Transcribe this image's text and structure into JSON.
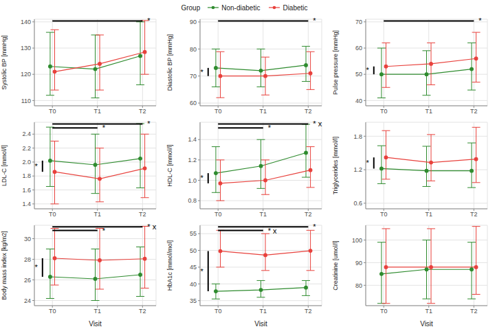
{
  "legend_title": "Group",
  "legend": "top",
  "chart_data": [
    {
      "type": "line",
      "y_label": "Systolic BP [mmHg]",
      "categories": [
        "T0",
        "T1",
        "T2"
      ],
      "ylim": [
        108,
        141
      ],
      "yticks": [
        110,
        120,
        130,
        140
      ],
      "grid": true,
      "series": [
        {
          "name": "Non-diabetic",
          "color": "#2e8b2e",
          "marker": "circle",
          "values": [
            123,
            122,
            127
          ],
          "lower": [
            112,
            111,
            116
          ],
          "upper": [
            136,
            135,
            140
          ]
        },
        {
          "name": "Diabetic",
          "color": "#e8413c",
          "marker": "circle",
          "values": [
            121,
            124,
            128.5
          ],
          "lower": [
            114,
            114,
            120
          ],
          "upper": [
            137,
            135,
            140.5
          ]
        }
      ],
      "brackets": [
        {
          "from": "T0",
          "to": "T2",
          "label": "*"
        }
      ]
    },
    {
      "type": "line",
      "y_label": "Diastolic BP [mmHg]",
      "categories": [
        "T0",
        "T1",
        "T2"
      ],
      "ylim": [
        59,
        91
      ],
      "yticks": [
        60,
        70,
        80,
        90
      ],
      "grid": true,
      "series": [
        {
          "name": "Non-diabetic",
          "color": "#2e8b2e",
          "marker": "circle",
          "values": [
            73,
            72,
            74
          ],
          "lower": [
            66,
            66,
            68
          ],
          "upper": [
            80,
            80,
            81
          ]
        },
        {
          "name": "Diabetic",
          "color": "#e8413c",
          "marker": "circle",
          "values": [
            70,
            70,
            71
          ],
          "lower": [
            62,
            63,
            65
          ],
          "upper": [
            79,
            77,
            79
          ]
        }
      ],
      "brackets": [
        {
          "from": "T0",
          "to": "T2",
          "label": "*"
        }
      ],
      "group_difference": {
        "at": "T0",
        "label": "*"
      }
    },
    {
      "type": "line",
      "y_label": "Pulse pressure [mmHg]",
      "categories": [
        "T0",
        "T1",
        "T2"
      ],
      "ylim": [
        38,
        71
      ],
      "yticks": [
        40,
        50,
        60,
        70
      ],
      "grid": true,
      "series": [
        {
          "name": "Non-diabetic",
          "color": "#2e8b2e",
          "marker": "circle",
          "values": [
            50,
            50,
            52
          ],
          "lower": [
            41,
            42,
            44
          ],
          "upper": [
            60,
            59,
            62
          ]
        },
        {
          "name": "Diabetic",
          "color": "#e8413c",
          "marker": "circle",
          "values": [
            53,
            54,
            56
          ],
          "lower": [
            45,
            46,
            47
          ],
          "upper": [
            62,
            62,
            66
          ]
        }
      ],
      "brackets": [
        {
          "from": "T0",
          "to": "T2",
          "label": "*"
        }
      ],
      "group_difference": {
        "at": "T0",
        "label": "*"
      }
    },
    {
      "type": "line",
      "y_label": "LDL-C [mmol/l]",
      "categories": [
        "T0",
        "T1",
        "T2"
      ],
      "ylim": [
        1.33,
        2.57
      ],
      "yticks": [
        1.4,
        1.6,
        1.8,
        {
          "value": 2,
          "label": "2.0"
        },
        2.2,
        2.4
      ],
      "grid": true,
      "series": [
        {
          "name": "Non-diabetic",
          "color": "#2e8b2e",
          "marker": "circle",
          "values": [
            2.02,
            1.96,
            2.05
          ],
          "lower": [
            1.65,
            1.55,
            1.63
          ],
          "upper": [
            2.5,
            2.4,
            2.55
          ]
        },
        {
          "name": "Diabetic",
          "color": "#e8413c",
          "marker": "circle",
          "values": [
            1.86,
            1.76,
            1.91
          ],
          "lower": [
            1.4,
            1.43,
            1.49
          ],
          "upper": [
            2.3,
            2.2,
            2.4
          ]
        }
      ],
      "brackets": [
        {
          "from": "T0",
          "to": "T1",
          "label": "*"
        },
        {
          "from": "T0",
          "to": "T2",
          "label": "*"
        }
      ],
      "group_difference": {
        "at": "T0",
        "label": "*"
      }
    },
    {
      "type": "line",
      "y_label": "HDL-C [mmol/l]",
      "categories": [
        "T0",
        "T1",
        "T2"
      ],
      "ylim": [
        0.72,
        1.57
      ],
      "yticks": [
        0.8,
        {
          "value": 1,
          "label": "1.0"
        },
        1.2,
        1.4
      ],
      "grid": true,
      "series": [
        {
          "name": "Non-diabetic",
          "color": "#2e8b2e",
          "marker": "circle",
          "values": [
            1.07,
            1.14,
            1.27
          ],
          "lower": [
            0.88,
            0.92,
            1.03
          ],
          "upper": [
            1.33,
            1.4,
            1.55
          ]
        },
        {
          "name": "Diabetic",
          "color": "#e8413c",
          "marker": "circle",
          "values": [
            0.97,
            1.0,
            1.1
          ],
          "lower": [
            0.8,
            0.86,
            0.93
          ],
          "upper": [
            1.2,
            1.2,
            1.33
          ]
        }
      ],
      "brackets": [
        {
          "from": "T0",
          "to": "T1",
          "label": "*"
        },
        {
          "from": "T0",
          "to": "T2",
          "label": "* x"
        }
      ],
      "group_difference": {
        "at": "T0",
        "label": "*"
      }
    },
    {
      "type": "line",
      "y_label": "Triglycerides [mmol/l]",
      "categories": [
        "T0",
        "T1",
        "T2"
      ],
      "ylim": [
        0.5,
        2.05
      ],
      "yticks": [
        0.6,
        1.2,
        1.8
      ],
      "grid": true,
      "series": [
        {
          "name": "Non-diabetic",
          "color": "#2e8b2e",
          "marker": "circle",
          "values": [
            1.22,
            1.18,
            1.18
          ],
          "lower": [
            0.95,
            0.9,
            0.88
          ],
          "upper": [
            1.63,
            1.62,
            1.68
          ]
        },
        {
          "name": "Diabetic",
          "color": "#e8413c",
          "marker": "circle",
          "values": [
            1.42,
            1.33,
            1.39
          ],
          "lower": [
            1.03,
            1.0,
            0.97
          ],
          "upper": [
            1.9,
            1.83,
            1.96
          ]
        }
      ],
      "group_difference": {
        "at": "T0",
        "label": "*"
      }
    },
    {
      "type": "line",
      "y_label": "Body mass index [kg/m2]",
      "x_label": "Visit",
      "categories": [
        "T0",
        "T1",
        "T2"
      ],
      "ylim": [
        23.5,
        31.3
      ],
      "yticks": [
        24,
        26,
        28,
        30
      ],
      "grid": true,
      "series": [
        {
          "name": "Non-diabetic",
          "color": "#2e8b2e",
          "marker": "circle",
          "values": [
            26.3,
            26.1,
            26.5
          ],
          "lower": [
            24.2,
            24.0,
            24.4
          ],
          "upper": [
            29.0,
            29.0,
            29.2
          ]
        },
        {
          "name": "Diabetic",
          "color": "#e8413c",
          "marker": "circle",
          "values": [
            28.1,
            27.9,
            28.05
          ],
          "lower": [
            25.5,
            25.1,
            25.2
          ],
          "upper": [
            31.0,
            31.0,
            31.2
          ]
        }
      ],
      "brackets": [
        {
          "from": "T0",
          "to": "T1",
          "label": "*"
        },
        {
          "from": "T0",
          "to": "T2",
          "label": "* x"
        }
      ],
      "group_difference": {
        "at": "T0",
        "label": "*"
      }
    },
    {
      "type": "line",
      "y_label": "HbA1c [mmol/mol]",
      "x_label": "Visit",
      "categories": [
        "T0",
        "T1",
        "T2"
      ],
      "ylim": [
        33.5,
        57.5
      ],
      "yticks": [
        35,
        40,
        45,
        50,
        55
      ],
      "grid": true,
      "series": [
        {
          "name": "Non-diabetic",
          "color": "#2e8b2e",
          "marker": "circle",
          "values": [
            37.8,
            38.2,
            38.9
          ],
          "lower": [
            35.5,
            36,
            36.5
          ],
          "upper": [
            40,
            41,
            41
          ]
        },
        {
          "name": "Diabetic",
          "color": "#e8413c",
          "marker": "circle",
          "values": [
            49.8,
            48.6,
            49.9
          ],
          "lower": [
            45,
            44,
            44
          ],
          "upper": [
            56,
            55,
            56
          ]
        }
      ],
      "brackets": [
        {
          "from": "T0",
          "to": "T1",
          "label": "* x"
        },
        {
          "from": "T0",
          "to": "T2",
          "label": "*"
        }
      ],
      "group_difference": {
        "at": "T0",
        "label": "*"
      }
    },
    {
      "type": "line",
      "y_label": "Creatinine [umol/l]",
      "x_label": "Visit",
      "categories": [
        "T0",
        "T1",
        "T2"
      ],
      "ylim": [
        71,
        106.5
      ],
      "yticks": [
        80,
        90,
        100
      ],
      "grid": true,
      "series": [
        {
          "name": "Non-diabetic",
          "color": "#2e8b2e",
          "marker": "circle",
          "values": [
            85,
            87,
            87
          ],
          "lower": [
            72,
            74,
            74
          ],
          "upper": [
            99,
            100,
            99
          ]
        },
        {
          "name": "Diabetic",
          "color": "#e8413c",
          "marker": "circle",
          "values": [
            88,
            88,
            88
          ],
          "lower": [
            72,
            72,
            76
          ],
          "upper": [
            105,
            105,
            106
          ]
        }
      ]
    }
  ]
}
